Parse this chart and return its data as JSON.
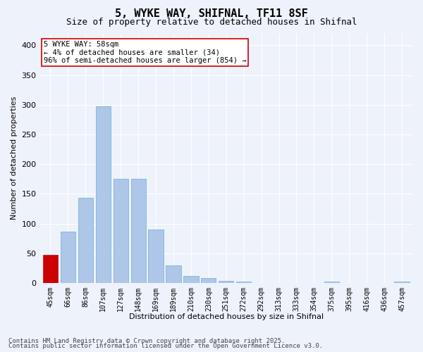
{
  "title": "5, WYKE WAY, SHIFNAL, TF11 8SF",
  "subtitle": "Size of property relative to detached houses in Shifnal",
  "xlabel": "Distribution of detached houses by size in Shifnal",
  "ylabel": "Number of detached properties",
  "categories": [
    "45sqm",
    "66sqm",
    "86sqm",
    "107sqm",
    "127sqm",
    "148sqm",
    "169sqm",
    "189sqm",
    "210sqm",
    "230sqm",
    "251sqm",
    "272sqm",
    "292sqm",
    "313sqm",
    "333sqm",
    "354sqm",
    "375sqm",
    "395sqm",
    "416sqm",
    "436sqm",
    "457sqm"
  ],
  "values": [
    47,
    87,
    143,
    298,
    175,
    175,
    90,
    30,
    12,
    8,
    4,
    2,
    0,
    0,
    0,
    0,
    3,
    0,
    0,
    0,
    3
  ],
  "bar_color": "#aec6e8",
  "bar_edge_color": "#6aaed6",
  "highlight_bar_index": 0,
  "highlight_color": "#cc0000",
  "highlight_edge_color": "#cc0000",
  "annotation_box_text": "5 WYKE WAY: 58sqm\n← 4% of detached houses are smaller (34)\n96% of semi-detached houses are larger (854) →",
  "annotation_box_color": "#ffffff",
  "annotation_box_edge_color": "#cc0000",
  "ylim": [
    0,
    420
  ],
  "yticks": [
    0,
    50,
    100,
    150,
    200,
    250,
    300,
    350,
    400
  ],
  "background_color": "#eef2fb",
  "grid_color": "#ffffff",
  "footer_line1": "Contains HM Land Registry data © Crown copyright and database right 2025.",
  "footer_line2": "Contains public sector information licensed under the Open Government Licence v3.0.",
  "title_fontsize": 11,
  "subtitle_fontsize": 9,
  "axis_label_fontsize": 8,
  "tick_fontsize": 7,
  "annotation_fontsize": 7.5,
  "footer_fontsize": 6.5
}
